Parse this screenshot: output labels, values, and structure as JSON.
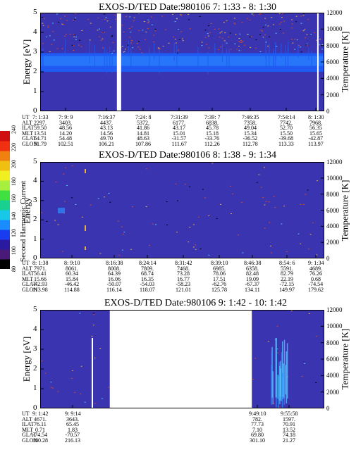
{
  "colors": {
    "background": "#3a34b0",
    "band": "#1f5af2",
    "band_bright": "#2d8dff",
    "gap": "#ffffff",
    "speckle_red": "#d94a2a",
    "speckle_orange": "#e8b040",
    "speckle_cyan": "#55c8ff",
    "speckle_black": "#000000"
  },
  "colorbar": {
    "title": "Second Harmonic Current",
    "ticks": [
      "80",
      "100",
      "120",
      "140",
      "160",
      "180",
      "200",
      "220",
      "240"
    ],
    "colors": [
      "#000000",
      "#4a1a78",
      "#2a1aa0",
      "#1a3cf0",
      "#1a8cff",
      "#18c8e8",
      "#18d090",
      "#40e040",
      "#a8f040",
      "#f0f020",
      "#f0c010",
      "#f08010",
      "#f03010",
      "#d01010"
    ]
  },
  "chart_data": [
    {
      "type": "heatmap",
      "title": "EXOS-D/TED  Date:980106  7: 1:33 - 8: 1:30",
      "ylabel": "Energy [eV]",
      "ylabel_right": "Temperature [K]",
      "ylim": [
        0,
        5
      ],
      "yticks": [
        "0",
        "1",
        "2",
        "3",
        "4",
        "5"
      ],
      "ylim_right": [
        0,
        12000
      ],
      "yticks_right": [
        "0",
        "2000",
        "4000",
        "6000",
        "8000",
        "10000",
        "12000"
      ],
      "band": {
        "low": 2.0,
        "high": 2.95,
        "core_low": 2.3,
        "core_high": 2.8
      },
      "data_gaps": [
        [
          0.27,
          0.285
        ],
        [
          0.975,
          0.98
        ]
      ],
      "ephemeris": {
        "row_labels": [
          "UT",
          "ALT",
          "ILAT",
          "MLT",
          "GLAT",
          "GLON"
        ],
        "columns": [
          [
            "7: 1:33",
            "2297.",
            "59.50",
            "13.51",
            "64.71",
            "91.79"
          ],
          [
            "7: 9: 9",
            "3403.",
            "48.56",
            "14.20",
            "54.48",
            "102.51"
          ],
          [
            "7:16:37",
            "4437.",
            "43.13",
            "14.56",
            "49.70",
            "106.21"
          ],
          [
            "7:24: 8",
            "5372.",
            "41.86",
            "14.81",
            "48.63",
            "107.86"
          ],
          [
            "7:31:39",
            "6177.",
            "43.17",
            "15.01",
            "-31.57",
            "111.67"
          ],
          [
            "7:39: 7",
            "6838.",
            "45.78",
            "15.18",
            "-33.76",
            "112.26"
          ],
          [
            "7:46:35",
            "7358.",
            "49.04",
            "15.34",
            "-36.52",
            "112.78"
          ],
          [
            "7:54:14",
            "7742.",
            "52.70",
            "15.50",
            "-39.68",
            "113.33"
          ],
          [
            "8: 1:30",
            "7968.",
            "56.35",
            "15.65",
            "-42.87",
            "113.97"
          ]
        ]
      }
    },
    {
      "type": "heatmap",
      "title": "EXOS-D/TED  Date:980106  8: 1:38 - 9: 1:34",
      "ylabel": "Energy",
      "ylabel_right": "Temperature [K]",
      "ylim": [
        0,
        5
      ],
      "yticks": [
        "0",
        "1",
        "2",
        "3",
        "4",
        "5"
      ],
      "ylim_right": [
        0,
        12000
      ],
      "yticks_right": [
        "0",
        "2000",
        "4000",
        "6000",
        "8000",
        "10000",
        "12000"
      ],
      "band": null,
      "data_gaps": [],
      "ephemeris": {
        "row_labels": [
          "UT",
          "ALT",
          "ILAT",
          "MLT",
          "GLAT",
          "GLON"
        ],
        "columns": [
          [
            "8: 1:38",
            "7971.",
            "56.41",
            "15.66",
            "-42.93",
            "113.98"
          ],
          [
            "8: 9:10",
            "8061.",
            "60.34",
            "15.84",
            "-46.42",
            "114.88"
          ],
          [
            "8:16:38",
            "8008.",
            "64.39",
            "16.06",
            "-50.07",
            "116.14"
          ],
          [
            "8:24:14",
            "7809.",
            "68.74",
            "16.35",
            "-54.03",
            "118.07"
          ],
          [
            "8:31:42",
            "7468.",
            "73.28",
            "16.77",
            "-58.23",
            "121.01"
          ],
          [
            "8:39:10",
            "6985.",
            "78.06",
            "17.51",
            "-62.76",
            "125.78"
          ],
          [
            "8:46:38",
            "6358.",
            "82.48",
            "19.09",
            "-67.37",
            "134.11"
          ],
          [
            "8:54: 6",
            "5591.",
            "82.79",
            "22.19",
            "-72.15",
            "149.97"
          ],
          [
            "9: 1:34",
            "4689.",
            "76.26",
            "0.68",
            "-74.54",
            "179.62"
          ]
        ]
      }
    },
    {
      "type": "heatmap",
      "title": "EXOS-D/TED  Date:980106  9: 1:42 - 10: 1:42",
      "ylabel": "Energy [eV]",
      "ylabel_right": "Temperature [K]",
      "ylim": [
        0,
        5
      ],
      "yticks": [
        "0",
        "1",
        "2",
        "3",
        "4",
        "5"
      ],
      "ylim_right": [
        0,
        12000
      ],
      "yticks_right": [
        "0",
        "2000",
        "4000",
        "6000",
        "8000",
        "10000",
        "12000"
      ],
      "band": null,
      "data_gaps": [
        [
          0.245,
          0.745
        ]
      ],
      "ephemeris": {
        "row_labels": [
          "UT",
          "ALT",
          "ILAT",
          "MLT",
          "GLAT",
          "GLON"
        ],
        "columns": [
          [
            "9: 1:42",
            "4671.",
            "76.11",
            "0.71",
            "-74.54",
            "180.28"
          ],
          [
            "9: 9:14",
            "3643.",
            "65.45",
            "1.83",
            "-70.57",
            "216.13"
          ],
          [
            "9:49:10",
            "782.",
            "77.73",
            "7.10",
            "69.80",
            "301.10"
          ],
          [
            "9:55:58",
            "1597.",
            "70.91",
            "13.52",
            "74.18",
            "21.27"
          ]
        ]
      }
    }
  ]
}
